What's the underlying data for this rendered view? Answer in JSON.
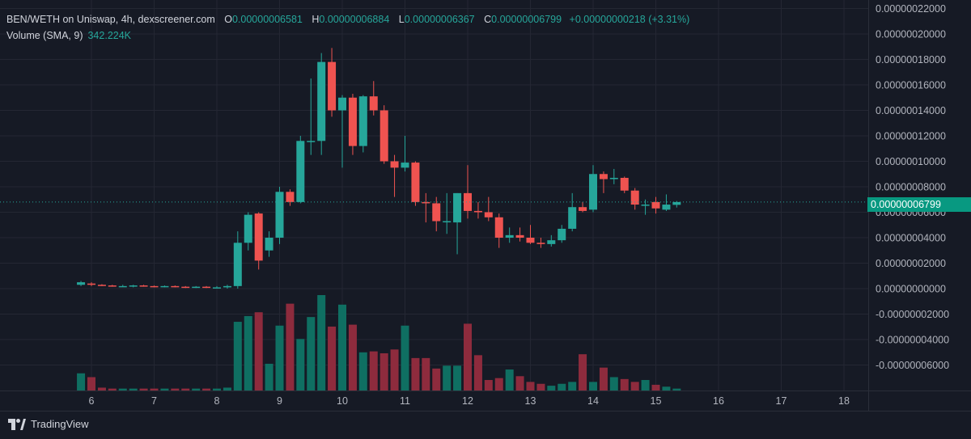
{
  "legend": {
    "symbol": "BEN/WETH on Uniswap, 4h, dexscreener.com",
    "o_label": "O",
    "o_value": "0.00000006581",
    "h_label": "H",
    "h_value": "0.00000006884",
    "l_label": "L",
    "l_value": "0.00000006367",
    "c_label": "C",
    "c_value": "0.00000006799",
    "change": "+0.00000000218 (+3.31%)",
    "volume_label": "Volume (SMA, 9)",
    "volume_value": "342.224K"
  },
  "last_price_tag": "0.00000006799",
  "branding": "TradingView",
  "colors": {
    "background": "#161a25",
    "up": "#26a69a",
    "down": "#ef5350",
    "up_volume": "#0f6f62",
    "down_volume": "#8e2b3d",
    "grid": "#242733"
  },
  "chart_data": {
    "type": "candlestick",
    "y_axis_ticks": [
      "0.00000022000",
      "0.00000020000",
      "0.00000018000",
      "0.00000016000",
      "0.00000014000",
      "0.00000012000",
      "0.00000010000",
      "0.00000008000",
      "0.00000006000",
      "0.00000004000",
      "0.00000002000",
      "0.00000000000",
      "-0.00000002000",
      "-0.00000004000",
      "-0.00000006000"
    ],
    "y_axis_values": [
      22,
      20,
      18,
      16,
      14,
      12,
      10,
      8,
      6,
      4,
      2,
      0,
      -2,
      -4,
      -6
    ],
    "y_axis_unit_scale": "1e-8",
    "ylim": [
      -8.2,
      22.2
    ],
    "x_axis_ticks": [
      "6",
      "7",
      "8",
      "9",
      "10",
      "11",
      "12",
      "13",
      "14",
      "15",
      "16",
      "17",
      "18"
    ],
    "x_axis_values": [
      6,
      7,
      8,
      9,
      10,
      11,
      12,
      13,
      14,
      15,
      16,
      17,
      18
    ],
    "xlim": [
      5.25,
      18.4
    ],
    "last_price": 6.799,
    "candles": [
      {
        "t": 5.833,
        "o": 0.3,
        "h": 0.6,
        "l": 0.2,
        "c": 0.5
      },
      {
        "t": 6.0,
        "o": 0.4,
        "h": 0.5,
        "l": 0.2,
        "c": 0.3
      },
      {
        "t": 6.167,
        "o": 0.3,
        "h": 0.35,
        "l": 0.2,
        "c": 0.25
      },
      {
        "t": 6.333,
        "o": 0.25,
        "h": 0.3,
        "l": 0.15,
        "c": 0.2
      },
      {
        "t": 6.5,
        "o": 0.2,
        "h": 0.3,
        "l": 0.15,
        "c": 0.2
      },
      {
        "t": 6.667,
        "o": 0.2,
        "h": 0.3,
        "l": 0.1,
        "c": 0.25
      },
      {
        "t": 6.833,
        "o": 0.25,
        "h": 0.3,
        "l": 0.15,
        "c": 0.2
      },
      {
        "t": 7.0,
        "o": 0.2,
        "h": 0.25,
        "l": 0.1,
        "c": 0.15
      },
      {
        "t": 7.167,
        "o": 0.15,
        "h": 0.25,
        "l": 0.1,
        "c": 0.2
      },
      {
        "t": 7.333,
        "o": 0.2,
        "h": 0.25,
        "l": 0.1,
        "c": 0.15
      },
      {
        "t": 7.5,
        "o": 0.15,
        "h": 0.2,
        "l": 0.05,
        "c": 0.1
      },
      {
        "t": 7.667,
        "o": 0.1,
        "h": 0.2,
        "l": 0.05,
        "c": 0.15
      },
      {
        "t": 7.833,
        "o": 0.15,
        "h": 0.2,
        "l": 0.05,
        "c": 0.1
      },
      {
        "t": 8.0,
        "o": 0.1,
        "h": 0.2,
        "l": 0.05,
        "c": 0.1
      },
      {
        "t": 8.167,
        "o": 0.1,
        "h": 0.3,
        "l": 0.0,
        "c": 0.2
      },
      {
        "t": 8.333,
        "o": 0.2,
        "h": 4.5,
        "l": 0.0,
        "c": 3.6
      },
      {
        "t": 8.5,
        "o": 3.6,
        "h": 6.0,
        "l": 3.0,
        "c": 5.8
      },
      {
        "t": 8.667,
        "o": 5.9,
        "h": 6.0,
        "l": 1.5,
        "c": 2.2
      },
      {
        "t": 8.833,
        "o": 3.0,
        "h": 4.5,
        "l": 2.5,
        "c": 4.0
      },
      {
        "t": 9.0,
        "o": 4.0,
        "h": 8.0,
        "l": 3.5,
        "c": 7.6
      },
      {
        "t": 9.167,
        "o": 7.6,
        "h": 7.8,
        "l": 6.5,
        "c": 6.8
      },
      {
        "t": 9.333,
        "o": 6.8,
        "h": 12.0,
        "l": 6.7,
        "c": 11.6
      },
      {
        "t": 9.5,
        "o": 11.6,
        "h": 16.5,
        "l": 10.5,
        "c": 11.6
      },
      {
        "t": 9.667,
        "o": 11.6,
        "h": 18.5,
        "l": 10.5,
        "c": 17.8
      },
      {
        "t": 9.833,
        "o": 17.8,
        "h": 18.9,
        "l": 13.5,
        "c": 14.0
      },
      {
        "t": 10.0,
        "o": 14.0,
        "h": 15.2,
        "l": 9.5,
        "c": 15.0
      },
      {
        "t": 10.167,
        "o": 15.0,
        "h": 15.3,
        "l": 10.5,
        "c": 11.2
      },
      {
        "t": 10.333,
        "o": 11.2,
        "h": 15.2,
        "l": 10.7,
        "c": 15.1
      },
      {
        "t": 10.5,
        "o": 15.1,
        "h": 16.3,
        "l": 13.6,
        "c": 14.0
      },
      {
        "t": 10.667,
        "o": 14.0,
        "h": 14.4,
        "l": 9.8,
        "c": 10.0
      },
      {
        "t": 10.833,
        "o": 10.0,
        "h": 10.5,
        "l": 7.2,
        "c": 9.5
      },
      {
        "t": 11.0,
        "o": 9.5,
        "h": 12.0,
        "l": 9.2,
        "c": 9.9
      },
      {
        "t": 11.167,
        "o": 9.9,
        "h": 10.0,
        "l": 6.5,
        "c": 6.8
      },
      {
        "t": 11.333,
        "o": 6.8,
        "h": 7.5,
        "l": 5.2,
        "c": 6.7
      },
      {
        "t": 11.5,
        "o": 6.7,
        "h": 7.2,
        "l": 4.5,
        "c": 5.3
      },
      {
        "t": 11.667,
        "o": 5.3,
        "h": 7.5,
        "l": 4.3,
        "c": 5.3
      },
      {
        "t": 11.833,
        "o": 5.2,
        "h": 7.5,
        "l": 2.7,
        "c": 7.5
      },
      {
        "t": 12.0,
        "o": 7.5,
        "h": 9.7,
        "l": 5.5,
        "c": 6.1
      },
      {
        "t": 12.167,
        "o": 6.1,
        "h": 6.8,
        "l": 5.5,
        "c": 6.0
      },
      {
        "t": 12.333,
        "o": 6.0,
        "h": 7.2,
        "l": 5.3,
        "c": 5.6
      },
      {
        "t": 12.5,
        "o": 5.6,
        "h": 5.9,
        "l": 3.2,
        "c": 4.0
      },
      {
        "t": 12.667,
        "o": 4.0,
        "h": 4.8,
        "l": 3.6,
        "c": 4.2
      },
      {
        "t": 12.833,
        "o": 4.2,
        "h": 4.8,
        "l": 3.7,
        "c": 4.0
      },
      {
        "t": 13.0,
        "o": 4.0,
        "h": 5.0,
        "l": 3.5,
        "c": 3.6
      },
      {
        "t": 13.167,
        "o": 3.6,
        "h": 4.0,
        "l": 3.2,
        "c": 3.5
      },
      {
        "t": 13.333,
        "o": 3.5,
        "h": 4.2,
        "l": 3.3,
        "c": 3.8
      },
      {
        "t": 13.5,
        "o": 3.8,
        "h": 5.0,
        "l": 3.6,
        "c": 4.7
      },
      {
        "t": 13.667,
        "o": 4.7,
        "h": 7.5,
        "l": 4.5,
        "c": 6.4
      },
      {
        "t": 13.833,
        "o": 6.4,
        "h": 6.8,
        "l": 6.0,
        "c": 6.1
      },
      {
        "t": 14.0,
        "o": 6.2,
        "h": 9.7,
        "l": 6.0,
        "c": 9.0
      },
      {
        "t": 14.167,
        "o": 9.0,
        "h": 9.2,
        "l": 7.5,
        "c": 8.6
      },
      {
        "t": 14.333,
        "o": 8.6,
        "h": 9.4,
        "l": 8.2,
        "c": 8.7
      },
      {
        "t": 14.5,
        "o": 8.7,
        "h": 8.8,
        "l": 7.5,
        "c": 7.7
      },
      {
        "t": 14.667,
        "o": 7.7,
        "h": 7.9,
        "l": 6.2,
        "c": 6.6
      },
      {
        "t": 14.833,
        "o": 6.6,
        "h": 7.0,
        "l": 5.8,
        "c": 6.6
      },
      {
        "t": 15.0,
        "o": 6.8,
        "h": 7.2,
        "l": 5.9,
        "c": 6.3
      },
      {
        "t": 15.167,
        "o": 6.2,
        "h": 7.4,
        "l": 6.1,
        "c": 6.6
      },
      {
        "t": 15.333,
        "o": 6.58,
        "h": 6.88,
        "l": 6.37,
        "c": 6.8
      }
    ],
    "volume_scale_note": "relative",
    "volumes": [
      0.18,
      0.14,
      0.03,
      0.02,
      0.02,
      0.02,
      0.02,
      0.02,
      0.02,
      0.02,
      0.02,
      0.02,
      0.02,
      0.02,
      0.03,
      0.72,
      0.78,
      0.82,
      0.28,
      0.68,
      0.91,
      0.54,
      0.77,
      1.0,
      0.67,
      0.9,
      0.69,
      0.4,
      0.41,
      0.39,
      0.43,
      0.68,
      0.34,
      0.34,
      0.23,
      0.26,
      0.26,
      0.7,
      0.37,
      0.11,
      0.13,
      0.22,
      0.15,
      0.09,
      0.07,
      0.05,
      0.07,
      0.09,
      0.38,
      0.09,
      0.24,
      0.14,
      0.12,
      0.09,
      0.11,
      0.06,
      0.04,
      0.02
    ]
  }
}
